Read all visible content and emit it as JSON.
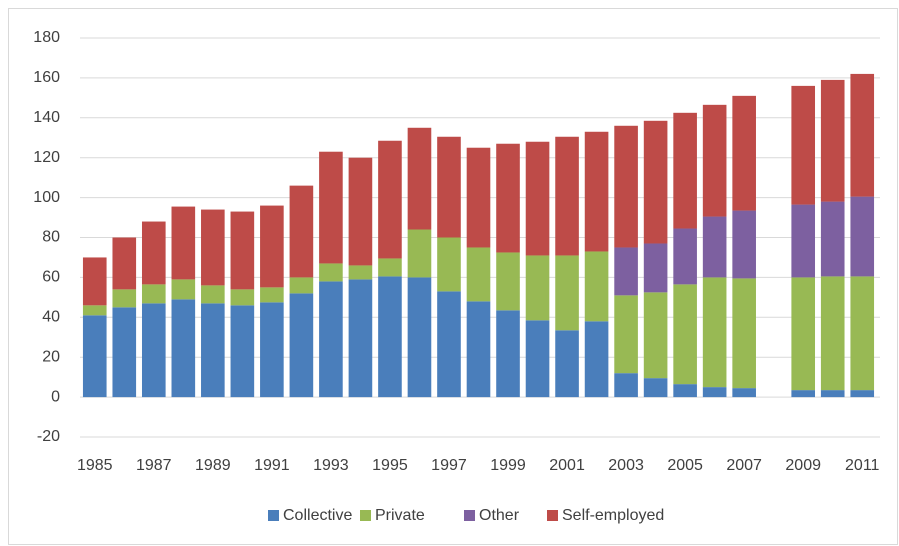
{
  "chart_data": {
    "type": "bar",
    "stacked": true,
    "categories": [
      "1985",
      null,
      "1987",
      null,
      "1989",
      null,
      "1991",
      null,
      "1993",
      null,
      "1995",
      null,
      "1997",
      null,
      "1999",
      null,
      "2001",
      null,
      "2003",
      null,
      "2005",
      null,
      "2007",
      null,
      "2009",
      null,
      "2011"
    ],
    "series": [
      {
        "name": "Collective",
        "color": "#4a7ebb",
        "values": [
          41,
          45,
          47,
          49,
          47,
          46,
          47.5,
          52,
          58,
          59,
          60.5,
          60,
          53,
          48,
          43.5,
          38.5,
          33.5,
          38,
          12,
          9.5,
          6.5,
          5,
          4.5,
          null,
          3.5,
          3.5,
          3.5
        ]
      },
      {
        "name": "Private",
        "color": "#98b954",
        "values": [
          5,
          9,
          9.5,
          10,
          9,
          8,
          7.5,
          8,
          9,
          7,
          9,
          24,
          27,
          27,
          29,
          32.5,
          37.5,
          35,
          39,
          43,
          50,
          55,
          55,
          null,
          56.5,
          57,
          57
        ]
      },
      {
        "name": "Other",
        "color": "#7d60a0",
        "values": [
          0,
          0,
          0,
          0,
          0,
          0,
          0,
          0,
          0,
          0,
          0,
          0,
          0,
          0,
          0,
          0,
          0,
          0,
          24,
          24.5,
          28,
          30.5,
          34,
          null,
          36.5,
          37.5,
          40
        ]
      },
      {
        "name": "Self-employed",
        "color": "#be4b48",
        "values": [
          24,
          26,
          31.5,
          36.5,
          38,
          39,
          41,
          46,
          56,
          54,
          59,
          51,
          50.5,
          50,
          54.5,
          57,
          59.5,
          60,
          61,
          61.5,
          58,
          56,
          57.5,
          null,
          59.5,
          61,
          61.5
        ]
      }
    ],
    "ylim": [
      -20,
      180
    ],
    "yticks": [
      -20,
      0,
      20,
      40,
      60,
      80,
      100,
      120,
      140,
      160,
      180
    ],
    "grid": true,
    "legend": "bottom"
  }
}
